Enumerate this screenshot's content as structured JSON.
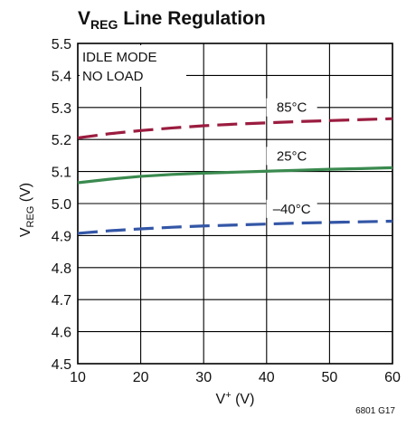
{
  "chart_data": {
    "type": "line",
    "title": "V_REG Line Regulation",
    "title_main": "V",
    "title_sub": "REG",
    "title_rest": " Line Regulation",
    "xlabel_main": "V",
    "xlabel_sup": "+",
    "xlabel_rest": " (V)",
    "ylabel_main": "V",
    "ylabel_sub": "REG",
    "ylabel_rest": " (V)",
    "xlim": [
      10,
      60
    ],
    "ylim": [
      4.5,
      5.5
    ],
    "x_ticks": [
      10,
      20,
      30,
      40,
      50,
      60
    ],
    "y_ticks": [
      "4.5",
      "4.6",
      "4.7",
      "4.8",
      "4.9",
      "5.0",
      "5.1",
      "5.2",
      "5.3",
      "5.4",
      "5.5"
    ],
    "grid": true,
    "annotation_lines": [
      "IDLE MODE",
      "NO LOAD"
    ],
    "figure_code": "6801 G17",
    "series": [
      {
        "name": "85°C",
        "color": "#9b1c3f",
        "dash": "dashed",
        "x": [
          10,
          15,
          20,
          25,
          30,
          35,
          40,
          45,
          50,
          55,
          60
        ],
        "y": [
          5.205,
          5.218,
          5.228,
          5.236,
          5.243,
          5.248,
          5.252,
          5.256,
          5.259,
          5.262,
          5.265
        ]
      },
      {
        "name": "25°C",
        "color": "#3a8a4f",
        "dash": "solid",
        "x": [
          10,
          15,
          20,
          25,
          30,
          35,
          40,
          45,
          50,
          55,
          60
        ],
        "y": [
          5.065,
          5.076,
          5.085,
          5.091,
          5.095,
          5.098,
          5.101,
          5.104,
          5.107,
          5.109,
          5.112
        ]
      },
      {
        "name": "–40°C",
        "color": "#3356a6",
        "dash": "dashed",
        "x": [
          10,
          15,
          20,
          25,
          30,
          35,
          40,
          45,
          50,
          55,
          60
        ],
        "y": [
          4.907,
          4.915,
          4.921,
          4.926,
          4.93,
          4.933,
          4.936,
          4.939,
          4.941,
          4.943,
          4.945
        ]
      }
    ]
  }
}
